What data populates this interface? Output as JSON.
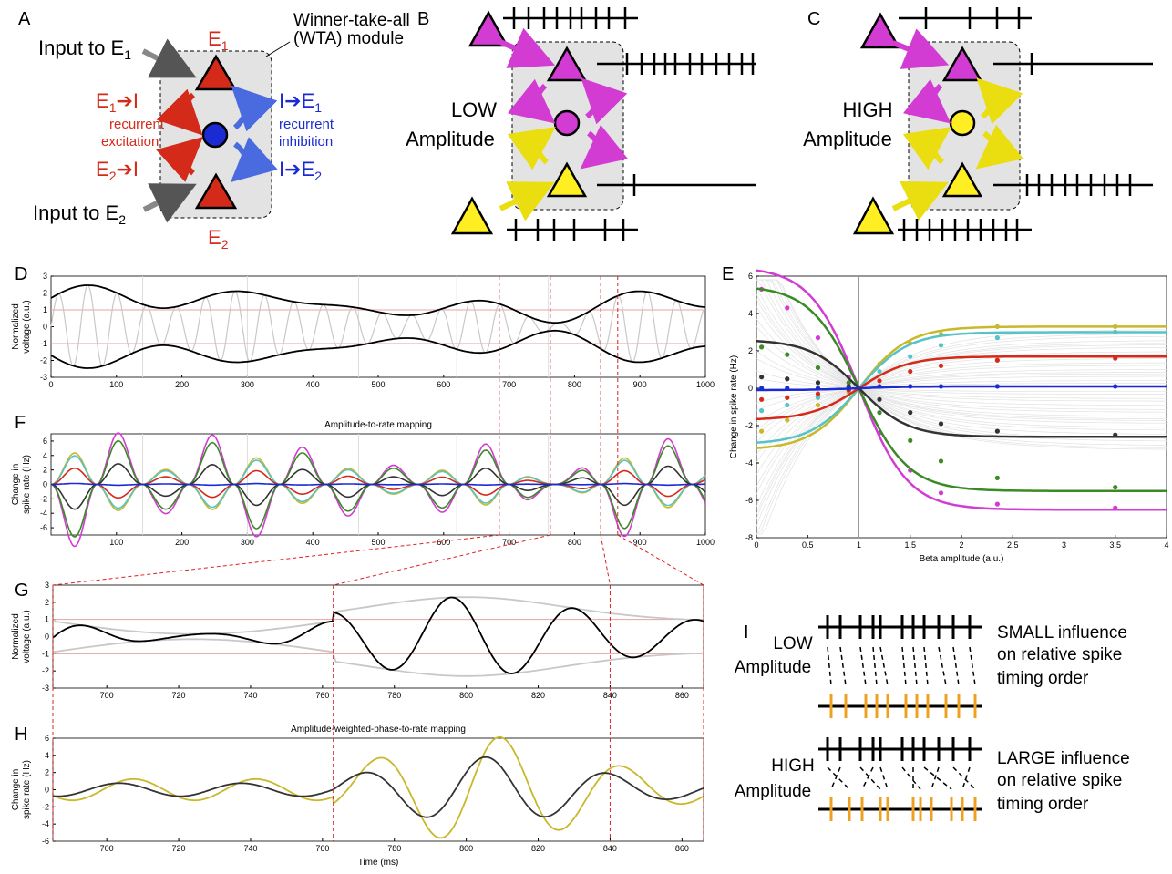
{
  "panels": {
    "A": {
      "letter": "A",
      "input1_label": "Input to E",
      "input1_sub": "1",
      "input2_label": "Input to E",
      "input2_sub": "2",
      "e1_label": "E",
      "e1_sub": "1",
      "e2_label": "E",
      "e2_sub": "2",
      "module_label_line1": "Winner-take-all",
      "module_label_line2": "(WTA) module",
      "exc1": "E",
      "exc1_sub": "1",
      "exc1_suffix": "I",
      "exc2": "E",
      "exc2_sub": "2",
      "exc2_suffix": "I",
      "exc_caption_line1": "recurrent",
      "exc_caption_line2": "excitation",
      "inh1": "I",
      "inh1_to": "E",
      "inh1_sub": "1",
      "inh2": "I",
      "inh2_to": "E",
      "inh2_sub": "2",
      "inh_caption_line1": "recurrent",
      "inh_caption_line2": "inhibition"
    },
    "B": {
      "letter": "B",
      "label_line1": "LOW",
      "label_line2": "Amplitude"
    },
    "C": {
      "letter": "C",
      "label_line1": "HIGH",
      "label_line2": "Amplitude"
    },
    "D": {
      "letter": "D"
    },
    "E": {
      "letter": "E"
    },
    "F": {
      "letter": "F"
    },
    "G": {
      "letter": "G"
    },
    "H": {
      "letter": "H"
    },
    "I": {
      "letter": "I",
      "low_line1": "LOW",
      "low_line2": "Amplitude",
      "high_line1": "HIGH",
      "high_line2": "Amplitude",
      "small_line1": "SMALL influence",
      "small_line2": "on relative spike",
      "small_line3": "timing order",
      "large_line1": "LARGE influence",
      "large_line2": "on relative spike",
      "large_line3": "timing order"
    }
  },
  "colors": {
    "excitatory": "#d42a1a",
    "inhibitory": "#1a2bd4",
    "magenta": "#d23cd2",
    "yellow": "#ffee22",
    "orange": "#f0a020",
    "cyan": "#56c3c6",
    "green": "#3a8a25",
    "olive": "#c8b82a",
    "dark": "#333333"
  },
  "chart_data": [
    {
      "id": "D",
      "type": "line",
      "title": "",
      "xlabel": "",
      "ylabel": "Normalized voltage (a.u.)",
      "xlim": [
        0,
        1000
      ],
      "ylim": [
        -3,
        3
      ],
      "xticks": [
        0,
        100,
        200,
        300,
        400,
        500,
        600,
        700,
        800,
        900,
        1000
      ],
      "yticks": [
        -3,
        -2,
        -1,
        0,
        1,
        2,
        3
      ],
      "thresholds": [
        1,
        -1
      ]
    },
    {
      "id": "F",
      "type": "line",
      "title": "Amplitude-to-rate mapping",
      "xlabel": "",
      "ylabel": "Change in spike rate (Hz)",
      "xlim": [
        0,
        1000
      ],
      "ylim": [
        -7,
        7
      ],
      "xticks": [
        100,
        200,
        300,
        400,
        500,
        600,
        700,
        800,
        900,
        1000
      ],
      "yticks": [
        -6,
        -4,
        -2,
        0,
        2,
        4,
        6
      ]
    },
    {
      "id": "E",
      "type": "line",
      "title": "",
      "xlabel": "Beta amplitude (a.u.)",
      "ylabel": "Change in spike rate (Hz)",
      "xlim": [
        0,
        4
      ],
      "ylim": [
        -8,
        6
      ],
      "xticks": [
        0,
        0.5,
        1,
        1.5,
        2,
        2.5,
        3,
        3.5,
        4
      ],
      "yticks": [
        -8,
        -6,
        -4,
        -2,
        0,
        2,
        4,
        6
      ],
      "series": [
        {
          "color": "#d23cd2",
          "k": -6.5,
          "points": [
            [
              0.05,
              5.3
            ],
            [
              0.3,
              4.3
            ],
            [
              0.6,
              2.7
            ],
            [
              0.9,
              0.6
            ],
            [
              1.2,
              -2.4
            ],
            [
              1.5,
              -4.4
            ],
            [
              1.8,
              -5.6
            ],
            [
              2.35,
              -6.2
            ],
            [
              3.5,
              -6.4
            ]
          ]
        },
        {
          "color": "#c8b82a",
          "k": 3.3,
          "points": [
            [
              0.05,
              -2.3
            ],
            [
              0.3,
              -1.7
            ],
            [
              0.6,
              -0.9
            ],
            [
              0.9,
              -0.2
            ],
            [
              1.2,
              1.3
            ],
            [
              1.5,
              2.4
            ],
            [
              1.8,
              2.9
            ],
            [
              2.35,
              3.3
            ],
            [
              3.5,
              3.3
            ]
          ]
        },
        {
          "color": "#56c3c6",
          "k": 3.0,
          "points": [
            [
              0.05,
              -1.2
            ],
            [
              0.3,
              -0.9
            ],
            [
              0.6,
              -0.5
            ],
            [
              0.9,
              -0.1
            ],
            [
              1.2,
              0.9
            ],
            [
              1.5,
              1.7
            ],
            [
              1.8,
              2.3
            ],
            [
              2.35,
              2.7
            ],
            [
              3.5,
              3.0
            ]
          ]
        },
        {
          "color": "#3a8a25",
          "k": -5.5,
          "points": [
            [
              0.05,
              2.2
            ],
            [
              0.3,
              1.8
            ],
            [
              0.6,
              1.1
            ],
            [
              0.9,
              0.3
            ],
            [
              1.2,
              -1.3
            ],
            [
              1.5,
              -2.8
            ],
            [
              1.8,
              -3.9
            ],
            [
              2.35,
              -4.8
            ],
            [
              3.5,
              -5.3
            ]
          ]
        },
        {
          "color": "#d42a1a",
          "k": 1.7,
          "points": [
            [
              0.05,
              -0.6
            ],
            [
              0.3,
              -0.5
            ],
            [
              0.6,
              -0.3
            ],
            [
              0.9,
              -0.1
            ],
            [
              1.2,
              0.4
            ],
            [
              1.5,
              0.9
            ],
            [
              1.8,
              1.2
            ],
            [
              2.35,
              1.5
            ],
            [
              3.5,
              1.6
            ]
          ]
        },
        {
          "color": "#333333",
          "k": -2.6,
          "points": [
            [
              0.05,
              0.6
            ],
            [
              0.3,
              0.5
            ],
            [
              0.6,
              0.3
            ],
            [
              0.9,
              0.1
            ],
            [
              1.2,
              -0.6
            ],
            [
              1.5,
              -1.3
            ],
            [
              1.8,
              -1.9
            ],
            [
              2.35,
              -2.3
            ],
            [
              3.5,
              -2.5
            ]
          ]
        },
        {
          "color": "#1a2bd4",
          "k": 0.1,
          "points": [
            [
              0.05,
              0.0
            ],
            [
              0.3,
              0.0
            ],
            [
              0.6,
              0.0
            ],
            [
              0.9,
              0.0
            ],
            [
              1.2,
              0.1
            ],
            [
              1.5,
              0.1
            ],
            [
              1.8,
              0.1
            ],
            [
              2.35,
              0.1
            ],
            [
              3.5,
              0.1
            ]
          ]
        }
      ]
    },
    {
      "id": "G",
      "type": "line",
      "title": "",
      "xlabel": "",
      "ylabel": "Normalized voltage (a.u.)",
      "xlim": [
        685,
        866
      ],
      "ylim": [
        -3,
        3
      ],
      "xticks": [
        700,
        720,
        740,
        760,
        780,
        800,
        820,
        840,
        860
      ],
      "yticks": [
        -3,
        -2,
        -1,
        0,
        1,
        2,
        3
      ]
    },
    {
      "id": "H",
      "type": "line",
      "title": "Amplitude-weighted-phase-to-rate mapping",
      "xlabel": "Time (ms)",
      "ylabel": "Change in spike rate (Hz)",
      "xlim": [
        685,
        866
      ],
      "ylim": [
        -6,
        6
      ],
      "xticks": [
        700,
        720,
        740,
        760,
        780,
        800,
        820,
        840,
        860
      ],
      "yticks": [
        -6,
        -4,
        -2,
        0,
        2,
        4,
        6
      ]
    }
  ]
}
